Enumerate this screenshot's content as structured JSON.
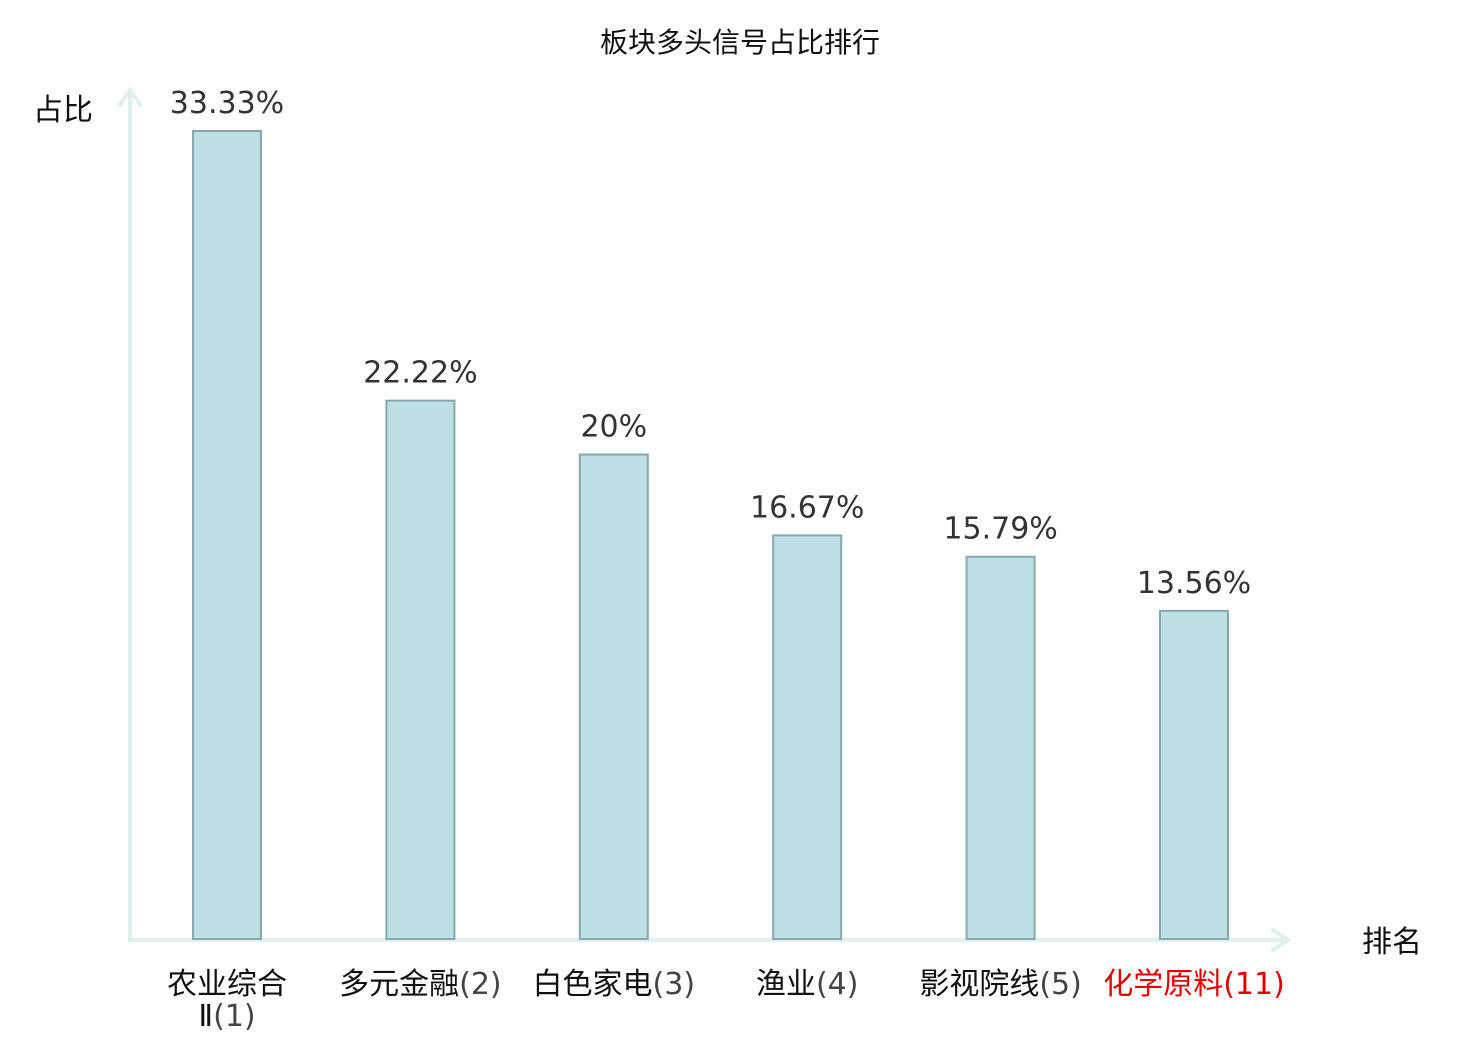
{
  "chart_data": {
    "type": "bar",
    "title": "板块多头信号占比排行",
    "ylabel": "占比",
    "xlabel": "排名",
    "categories": [
      {
        "name": "农业综合Ⅱ",
        "rank": "(1)",
        "highlight": false
      },
      {
        "name": "多元金融",
        "rank": "(2)",
        "highlight": false
      },
      {
        "name": "白色家电",
        "rank": "(3)",
        "highlight": false
      },
      {
        "name": "渔业",
        "rank": "(4)",
        "highlight": false
      },
      {
        "name": "影视院线",
        "rank": "(5)",
        "highlight": false
      },
      {
        "name": "化学原料",
        "rank": "(11)",
        "highlight": true
      }
    ],
    "values": [
      33.33,
      22.22,
      20,
      16.67,
      15.79,
      13.56
    ],
    "value_labels": [
      "33.33%",
      "22.22%",
      "20%",
      "16.67%",
      "15.79%",
      "13.56%"
    ],
    "ylim": [
      0,
      35
    ],
    "grid": false,
    "colors": {
      "bar_fill": "#bce0e3",
      "bar_stroke": "#86a8aa",
      "axis": "#dff1ef",
      "text": "#111111",
      "highlight": "#e00000"
    }
  }
}
